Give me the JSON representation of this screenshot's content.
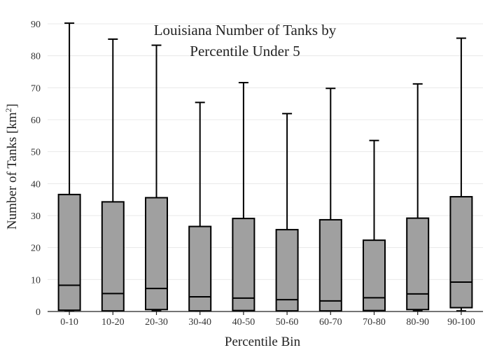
{
  "chart_data": {
    "type": "box",
    "title_lines": [
      "Louisiana Number of Tanks by",
      "Percentile Under 5"
    ],
    "xlabel": "Percentile Bin",
    "ylabel_main": "Number of Tanks  [km",
    "ylabel_sup": "2",
    "ylabel_end": "]",
    "ylim": [
      0,
      90
    ],
    "yticks": [
      0,
      10,
      20,
      30,
      40,
      50,
      60,
      70,
      80,
      90
    ],
    "grid": true,
    "box_color": "#a0a0a0",
    "categories": [
      "0-10",
      "10-20",
      "20-30",
      "30-40",
      "40-50",
      "50-60",
      "60-70",
      "70-80",
      "80-90",
      "90-100"
    ],
    "boxes": [
      {
        "min": 0.2,
        "q1": 0.4,
        "median": 8.2,
        "q3": 36.6,
        "max": 90.2
      },
      {
        "min": 0.1,
        "q1": 0.2,
        "median": 5.6,
        "q3": 34.3,
        "max": 85.2
      },
      {
        "min": 0.2,
        "q1": 0.6,
        "median": 7.2,
        "q3": 35.6,
        "max": 83.3
      },
      {
        "min": 0.1,
        "q1": 0.2,
        "median": 4.6,
        "q3": 26.6,
        "max": 65.4
      },
      {
        "min": 0.1,
        "q1": 0.3,
        "median": 4.2,
        "q3": 29.1,
        "max": 71.6
      },
      {
        "min": 0.1,
        "q1": 0.2,
        "median": 3.7,
        "q3": 25.6,
        "max": 61.9
      },
      {
        "min": 0.1,
        "q1": 0.2,
        "median": 3.3,
        "q3": 28.7,
        "max": 69.8
      },
      {
        "min": 0.1,
        "q1": 0.3,
        "median": 4.3,
        "q3": 22.3,
        "max": 53.5
      },
      {
        "min": 0.2,
        "q1": 0.6,
        "median": 5.5,
        "q3": 29.2,
        "max": 71.2
      },
      {
        "min": 0.2,
        "q1": 1.2,
        "median": 9.2,
        "q3": 35.9,
        "max": 85.5
      }
    ]
  }
}
